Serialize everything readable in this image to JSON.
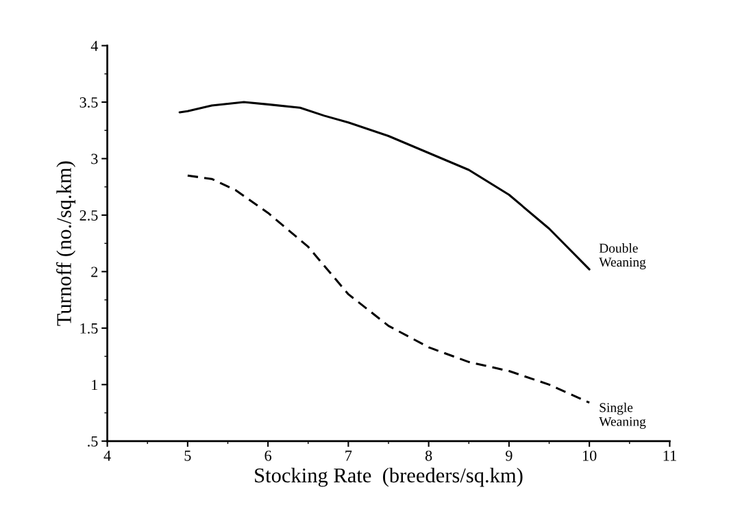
{
  "chart_data": {
    "type": "line",
    "xlabel": "Stocking Rate  (breeders/sq.km)",
    "ylabel": "Turnoff (no./sq.km)",
    "xlim": [
      4,
      11
    ],
    "xticks": [
      4,
      5,
      6,
      7,
      8,
      9,
      10,
      11
    ],
    "ylim": [
      0.5,
      4
    ],
    "yticks": [
      {
        "value": 0.5,
        "label": ".5"
      },
      1,
      1.5,
      2,
      2.5,
      3,
      3.5,
      4
    ],
    "grid": false,
    "legend": false,
    "series": [
      {
        "name": "Double\nWeaning",
        "color": "#000000",
        "line_style": "solid",
        "x": [
          4.9,
          5.0,
          5.3,
          5.7,
          6.0,
          6.4,
          6.7,
          7.0,
          7.5,
          8.0,
          8.5,
          9.0,
          9.5,
          10.0
        ],
        "values": [
          3.41,
          3.42,
          3.47,
          3.5,
          3.48,
          3.45,
          3.38,
          3.32,
          3.2,
          3.05,
          2.9,
          2.68,
          2.38,
          2.02
        ]
      },
      {
        "name": "Single\nWeaning",
        "color": "#000000",
        "line_style": "dashed",
        "x": [
          5.0,
          5.3,
          5.6,
          6.0,
          6.5,
          7.0,
          7.5,
          8.0,
          8.5,
          9.0,
          9.5,
          10.0
        ],
        "values": [
          2.85,
          2.82,
          2.72,
          2.52,
          2.22,
          1.8,
          1.52,
          1.33,
          1.2,
          1.12,
          1.0,
          0.84
        ]
      }
    ]
  }
}
